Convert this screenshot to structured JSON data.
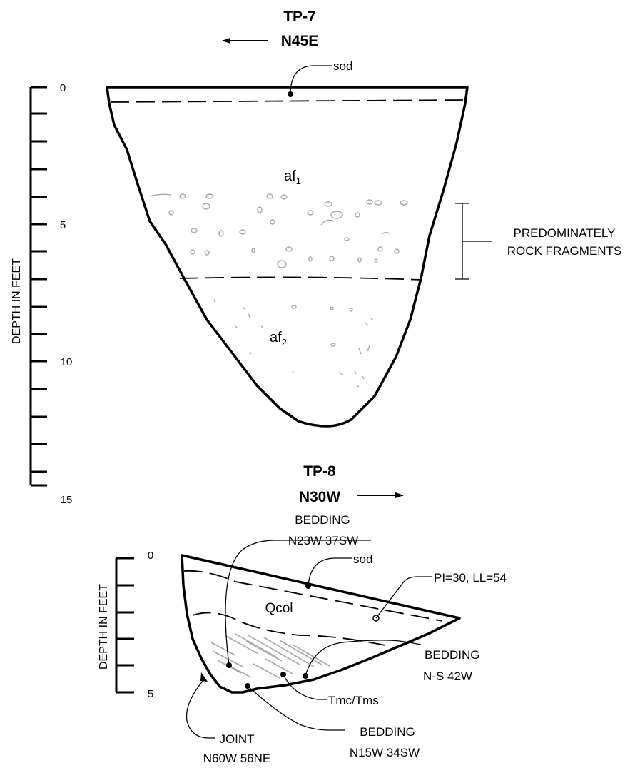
{
  "tp7": {
    "title": "TP-7",
    "direction": "N45E",
    "axis_label": "DEPTH IN FEET",
    "ticks": [
      "0",
      "5",
      "10",
      "15"
    ],
    "units": {
      "sod": "sod",
      "af1_base": "af",
      "af1_sub": "1",
      "af2_base": "af",
      "af2_sub": "2"
    },
    "note_line1": "PREDOMINATELY",
    "note_line2": "ROCK FRAGMENTS"
  },
  "tp8": {
    "title": "TP-8",
    "direction": "N30W",
    "axis_label": "DEPTH IN FEET",
    "ticks": [
      "0",
      "5"
    ],
    "sod": "sod",
    "qcol": "Qcol",
    "bedding_top_1": "BEDDING",
    "bedding_top_2": "N23W 37SW",
    "pi": "PI=30, LL=54",
    "bedding_right_1": "BEDDING",
    "bedding_right_2": "N-S 42W",
    "tmc": "Tmc/Tms",
    "bedding_bottom_1": "BEDDING",
    "bedding_bottom_2": "N15W 34SW",
    "joint_1": "JOINT",
    "joint_2": "N60W 56NE"
  }
}
